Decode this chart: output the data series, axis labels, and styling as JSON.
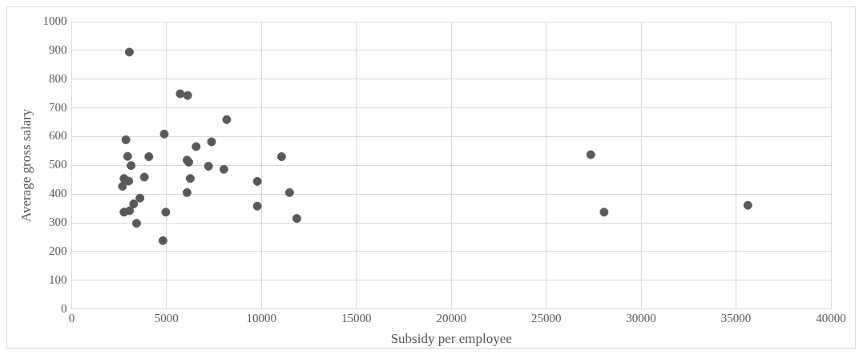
{
  "chart_data": {
    "type": "scatter",
    "xlabel": "Subsidy per employee",
    "ylabel": "Average gross salary",
    "xlim": [
      0,
      40000
    ],
    "xticks": [
      0,
      5000,
      10000,
      15000,
      20000,
      25000,
      30000,
      35000,
      40000
    ],
    "ylim": [
      0,
      1000
    ],
    "yticks": [
      0,
      100,
      200,
      300,
      400,
      500,
      600,
      700,
      800,
      900,
      1000
    ],
    "grid": true,
    "marker": "circle",
    "legend": false,
    "series": [
      {
        "color": "#595959",
        "x": [
          3040,
          5720,
          6110,
          8170,
          4880,
          2860,
          7370,
          6560,
          2950,
          4070,
          11060,
          6080,
          6170,
          3130,
          7210,
          8020,
          3830,
          6250,
          2760,
          3010,
          2680,
          9780,
          6080,
          11480,
          3600,
          3270,
          2760,
          3050,
          4960,
          9780,
          11860,
          3420,
          4810,
          27350,
          28050,
          35620
        ],
        "values": [
          894,
          749,
          743,
          659,
          609,
          589,
          582,
          565,
          531,
          530,
          530,
          518,
          511,
          499,
          497,
          486,
          459,
          454,
          454,
          445,
          427,
          444,
          405,
          405,
          386,
          366,
          337,
          342,
          337,
          358,
          315,
          298,
          238,
          537,
          337,
          361
        ]
      }
    ]
  }
}
